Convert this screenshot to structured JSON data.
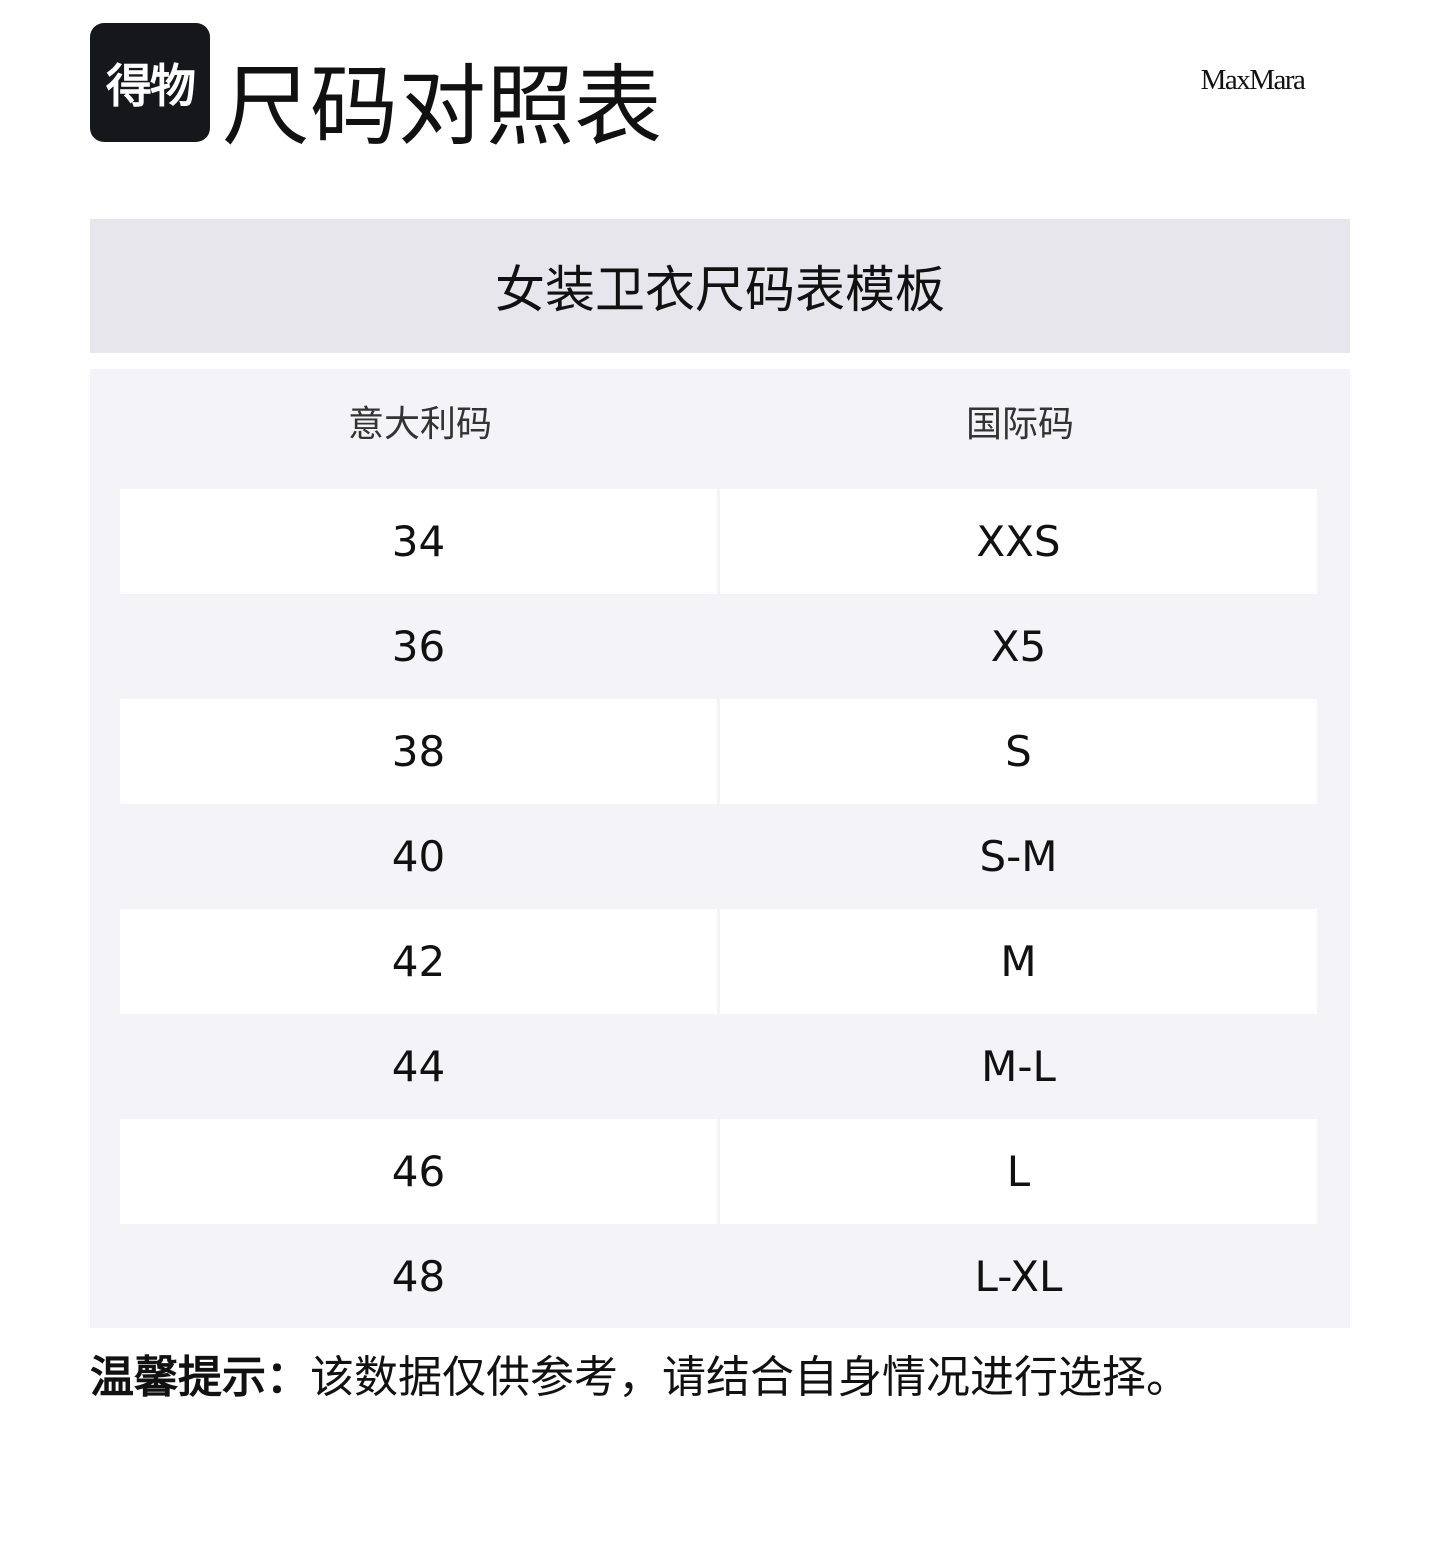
{
  "header": {
    "logo_text": "得物",
    "title": "尺码对照表",
    "brand": "MaxMara"
  },
  "band_title": "女装卫衣尺码表模板",
  "table": {
    "columns": [
      "意大利码",
      "国际码"
    ],
    "rows": [
      [
        "34",
        "XXS"
      ],
      [
        "36",
        "X5"
      ],
      [
        "38",
        "S"
      ],
      [
        "40",
        "S-M"
      ],
      [
        "42",
        "M"
      ],
      [
        "44",
        "M-L"
      ],
      [
        "46",
        "L"
      ],
      [
        "48",
        "L-XL"
      ]
    ]
  },
  "footer": {
    "label": "温馨提示：",
    "text": "该数据仅供参考，请结合自身情况进行选择。"
  },
  "colors": {
    "band": "#e6e6ec",
    "table_bg": "#f4f4f8",
    "logo_bg": "#16171b"
  }
}
